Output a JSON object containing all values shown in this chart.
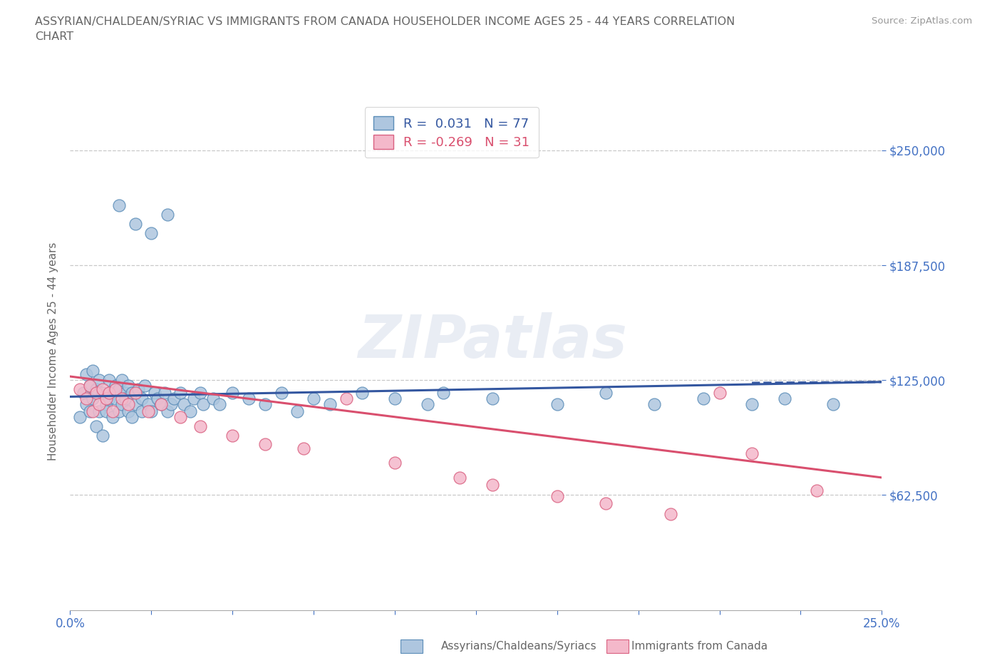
{
  "title": "ASSYRIAN/CHALDEAN/SYRIAC VS IMMIGRANTS FROM CANADA HOUSEHOLDER INCOME AGES 25 - 44 YEARS CORRELATION\nCHART",
  "source_text": "Source: ZipAtlas.com",
  "ylabel": "Householder Income Ages 25 - 44 years",
  "xlim": [
    0.0,
    0.25
  ],
  "ylim": [
    0,
    281250
  ],
  "ytick_values": [
    62500,
    125000,
    187500,
    250000
  ],
  "ytick_labels": [
    "$62,500",
    "$125,000",
    "$187,500",
    "$250,000"
  ],
  "blue_R": 0.031,
  "blue_N": 77,
  "pink_R": -0.269,
  "pink_N": 31,
  "watermark": "ZIPatlas",
  "blue_color": "#aec6df",
  "blue_edge": "#5b8db8",
  "pink_color": "#f4b8ca",
  "pink_edge": "#d96080",
  "blue_line_color": "#3457a0",
  "pink_line_color": "#d94f6e",
  "grid_color": "#c8c8c8",
  "title_color": "#666666",
  "axis_label_color": "#666666",
  "tick_color": "#4472c4",
  "blue_scatter_x": [
    0.003,
    0.004,
    0.005,
    0.005,
    0.006,
    0.006,
    0.007,
    0.007,
    0.008,
    0.008,
    0.009,
    0.009,
    0.01,
    0.01,
    0.011,
    0.011,
    0.012,
    0.012,
    0.013,
    0.013,
    0.014,
    0.014,
    0.015,
    0.015,
    0.016,
    0.016,
    0.017,
    0.017,
    0.018,
    0.018,
    0.019,
    0.019,
    0.02,
    0.021,
    0.022,
    0.022,
    0.023,
    0.024,
    0.025,
    0.026,
    0.027,
    0.028,
    0.029,
    0.03,
    0.031,
    0.032,
    0.034,
    0.035,
    0.037,
    0.038,
    0.04,
    0.041,
    0.044,
    0.046,
    0.05,
    0.055,
    0.06,
    0.065,
    0.07,
    0.075,
    0.08,
    0.09,
    0.1,
    0.11,
    0.115,
    0.13,
    0.15,
    0.165,
    0.18,
    0.195,
    0.21,
    0.22,
    0.235,
    0.015,
    0.02,
    0.025,
    0.03
  ],
  "blue_scatter_y": [
    105000,
    118000,
    112000,
    128000,
    108000,
    122000,
    115000,
    130000,
    100000,
    120000,
    108000,
    125000,
    95000,
    118000,
    112000,
    108000,
    125000,
    115000,
    118000,
    105000,
    115000,
    122000,
    108000,
    120000,
    112000,
    125000,
    118000,
    115000,
    108000,
    122000,
    105000,
    118000,
    112000,
    120000,
    115000,
    108000,
    122000,
    112000,
    108000,
    118000,
    115000,
    112000,
    118000,
    108000,
    112000,
    115000,
    118000,
    112000,
    108000,
    115000,
    118000,
    112000,
    115000,
    112000,
    118000,
    115000,
    112000,
    118000,
    108000,
    115000,
    112000,
    118000,
    115000,
    112000,
    118000,
    115000,
    112000,
    118000,
    112000,
    115000,
    112000,
    115000,
    112000,
    220000,
    210000,
    205000,
    215000
  ],
  "pink_scatter_x": [
    0.003,
    0.005,
    0.006,
    0.007,
    0.008,
    0.009,
    0.01,
    0.011,
    0.012,
    0.013,
    0.014,
    0.016,
    0.018,
    0.02,
    0.024,
    0.028,
    0.034,
    0.04,
    0.05,
    0.06,
    0.072,
    0.085,
    0.1,
    0.12,
    0.13,
    0.15,
    0.165,
    0.185,
    0.2,
    0.21,
    0.23
  ],
  "pink_scatter_y": [
    120000,
    115000,
    122000,
    108000,
    118000,
    112000,
    120000,
    115000,
    118000,
    108000,
    120000,
    115000,
    112000,
    118000,
    108000,
    112000,
    105000,
    100000,
    95000,
    90000,
    88000,
    115000,
    80000,
    72000,
    68000,
    62000,
    58000,
    52000,
    118000,
    85000,
    65000
  ],
  "blue_line_x": [
    0.0,
    0.25
  ],
  "blue_line_y": [
    116000,
    124000
  ],
  "pink_line_x": [
    0.0,
    0.25
  ],
  "pink_line_y": [
    127000,
    72000
  ]
}
